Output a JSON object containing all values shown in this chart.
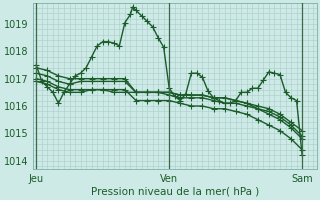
{
  "background_color": "#ceeae6",
  "plot_bg_color": "#ceeae6",
  "grid_color": "#aacccc",
  "line_color": "#1a5c2a",
  "xlabel": "Pression niveau de la mer( hPa )",
  "xtick_labels": [
    "Jeu",
    "Ven",
    "Sam"
  ],
  "xtick_positions": [
    0,
    12,
    24
  ],
  "ytick_labels": [
    "1014",
    "1015",
    "1016",
    "1017",
    "1018",
    "1019"
  ],
  "ytick_values": [
    1014,
    1015,
    1016,
    1017,
    1018,
    1019
  ],
  "ylim": [
    1013.7,
    1019.75
  ],
  "xlim": [
    -0.3,
    25.3
  ],
  "vlines": [
    0,
    12,
    24
  ],
  "series": [
    {
      "x": [
        0,
        0.5,
        1,
        1.5,
        2,
        2.5,
        3,
        3.5,
        4,
        4.5,
        5,
        5.5,
        6,
        6.5,
        7,
        7.5,
        8,
        8.5,
        8.7,
        9,
        9.5,
        10,
        10.5,
        11,
        11.5,
        12,
        12.5,
        13,
        13.5,
        14,
        14.5,
        15,
        15.5,
        16,
        16.5,
        17,
        17.5,
        18,
        18.5,
        19,
        19.5,
        20,
        20.5,
        21,
        21.5,
        22,
        22.5,
        23,
        23.5,
        24
      ],
      "y": [
        1017.5,
        1016.9,
        1016.7,
        1016.5,
        1016.1,
        1016.5,
        1016.8,
        1017.1,
        1017.2,
        1017.4,
        1017.8,
        1018.2,
        1018.35,
        1018.35,
        1018.3,
        1018.2,
        1019.05,
        1019.35,
        1019.62,
        1019.5,
        1019.3,
        1019.1,
        1018.9,
        1018.5,
        1018.15,
        1016.65,
        1016.35,
        1016.2,
        1016.45,
        1017.2,
        1017.2,
        1017.05,
        1016.55,
        1016.3,
        1016.2,
        1016.1,
        1016.1,
        1016.2,
        1016.5,
        1016.5,
        1016.65,
        1016.65,
        1016.95,
        1017.25,
        1017.2,
        1017.15,
        1016.5,
        1016.3,
        1016.2,
        1014.2
      ]
    },
    {
      "x": [
        0,
        1,
        2,
        3,
        4,
        5,
        6,
        7,
        8,
        9,
        10,
        11,
        12,
        13,
        14,
        15,
        16,
        17,
        18,
        19,
        20,
        21,
        22,
        23,
        24
      ],
      "y": [
        1017.2,
        1017.1,
        1016.9,
        1016.8,
        1016.9,
        1016.9,
        1016.9,
        1016.9,
        1016.9,
        1016.5,
        1016.5,
        1016.5,
        1016.5,
        1016.4,
        1016.4,
        1016.4,
        1016.3,
        1016.3,
        1016.2,
        1016.1,
        1016.0,
        1015.9,
        1015.7,
        1015.4,
        1015.1
      ]
    },
    {
      "x": [
        0,
        1,
        2,
        3,
        4,
        5,
        6,
        7,
        8,
        9,
        10,
        11,
        12,
        13,
        14,
        15,
        16,
        17,
        18,
        19,
        20,
        21,
        22,
        23,
        24
      ],
      "y": [
        1016.9,
        1016.8,
        1016.6,
        1016.5,
        1016.5,
        1016.6,
        1016.6,
        1016.5,
        1016.5,
        1016.5,
        1016.5,
        1016.5,
        1016.4,
        1016.3,
        1016.3,
        1016.3,
        1016.2,
        1016.1,
        1016.1,
        1016.0,
        1015.9,
        1015.7,
        1015.5,
        1015.2,
        1014.8
      ]
    },
    {
      "x": [
        0,
        1,
        2,
        3,
        4,
        5,
        6,
        7,
        8,
        9,
        10,
        11,
        12,
        13,
        14,
        15,
        16,
        17,
        18,
        19,
        20,
        21,
        22,
        23,
        24
      ],
      "y": [
        1017.4,
        1017.3,
        1017.1,
        1017.0,
        1017.0,
        1017.0,
        1017.0,
        1017.0,
        1017.0,
        1016.5,
        1016.5,
        1016.5,
        1016.5,
        1016.4,
        1016.4,
        1016.4,
        1016.3,
        1016.3,
        1016.2,
        1016.1,
        1015.9,
        1015.8,
        1015.6,
        1015.3,
        1014.9
      ]
    },
    {
      "x": [
        0,
        1,
        2,
        3,
        4,
        5,
        6,
        7,
        8,
        9,
        10,
        11,
        12,
        13,
        14,
        15,
        16,
        17,
        18,
        19,
        20,
        21,
        22,
        23,
        24
      ],
      "y": [
        1017.0,
        1016.9,
        1016.7,
        1016.6,
        1016.6,
        1016.6,
        1016.6,
        1016.6,
        1016.6,
        1016.2,
        1016.2,
        1016.2,
        1016.2,
        1016.1,
        1016.0,
        1016.0,
        1015.9,
        1015.9,
        1015.8,
        1015.7,
        1015.5,
        1015.3,
        1015.1,
        1014.8,
        1014.4
      ]
    }
  ],
  "marker": "+",
  "markersize": 4,
  "linewidth": 1.0
}
